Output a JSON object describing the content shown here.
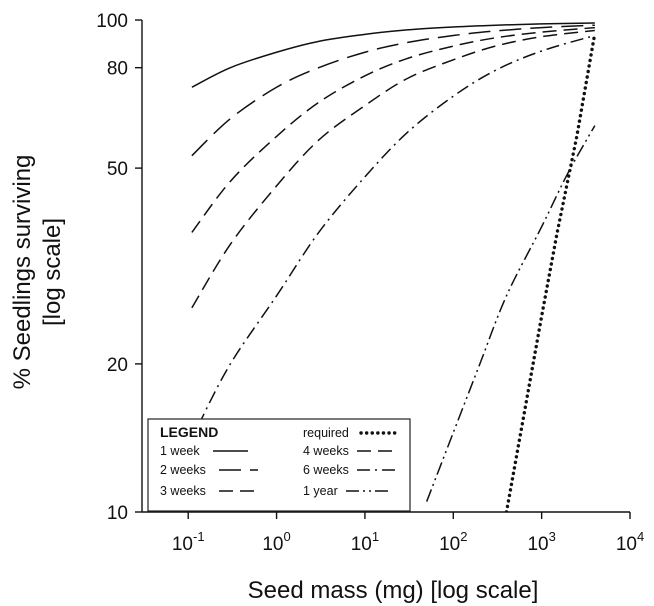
{
  "chart_data": {
    "type": "line",
    "xlabel": "Seed mass (mg) [log scale]",
    "ylabel_lines": [
      "% Seedlings surviving",
      "[log scale]"
    ],
    "x_scale": "log",
    "y_scale": "log",
    "xlim": [
      0.03,
      10000
    ],
    "ylim": [
      10,
      100
    ],
    "x_ticks": [
      {
        "value": 0.1,
        "base": "10",
        "exp": "-1"
      },
      {
        "value": 1,
        "base": "10",
        "exp": "0"
      },
      {
        "value": 10,
        "base": "10",
        "exp": "1"
      },
      {
        "value": 100,
        "base": "10",
        "exp": "2"
      },
      {
        "value": 1000,
        "base": "10",
        "exp": "3"
      },
      {
        "value": 10000,
        "base": "10",
        "exp": "4"
      }
    ],
    "y_ticks": [
      {
        "value": 10,
        "label": "10"
      },
      {
        "value": 20,
        "label": "20"
      },
      {
        "value": 50,
        "label": "50"
      },
      {
        "value": 80,
        "label": "80"
      },
      {
        "value": 100,
        "label": "100"
      }
    ],
    "legend": {
      "title": "LEGEND",
      "placement": "bottom-left"
    },
    "series": [
      {
        "name": "1 week",
        "dash": "solid",
        "x": [
          0.11,
          0.3,
          1,
          3,
          10,
          30,
          100,
          300,
          1000,
          4000
        ],
        "y": [
          73,
          80,
          86,
          90.5,
          93.5,
          95.5,
          96.8,
          97.6,
          98.2,
          98.6
        ]
      },
      {
        "name": "2 weeks",
        "dash": "long-dash",
        "x": [
          0.11,
          0.3,
          1,
          3,
          10,
          30,
          100,
          300,
          1000,
          4000
        ],
        "y": [
          53,
          63,
          73,
          80,
          86,
          90,
          93,
          95,
          96.5,
          97.6
        ]
      },
      {
        "name": "3 weeks",
        "dash": "dash",
        "x": [
          0.11,
          0.3,
          1,
          3,
          10,
          30,
          100,
          300,
          1000,
          4000
        ],
        "y": [
          37,
          47,
          58,
          68,
          77,
          83.5,
          88.5,
          92,
          94.5,
          96.5
        ]
      },
      {
        "name": "4 weeks",
        "dash": "dash",
        "x": [
          0.11,
          0.3,
          1,
          3,
          10,
          30,
          100,
          300,
          1000,
          4000
        ],
        "y": [
          26,
          35,
          46,
          57,
          67,
          76,
          83,
          88.5,
          92.5,
          95.2
        ]
      },
      {
        "name": "6 weeks",
        "dash": "dash-dot",
        "x": [
          0.13,
          0.3,
          1,
          3,
          10,
          30,
          100,
          300,
          1000,
          4000
        ],
        "y": [
          15,
          20,
          27.5,
          37,
          48,
          59,
          70,
          79,
          86.5,
          93
        ]
      },
      {
        "name": "1 year",
        "dash": "dash-dot-dot",
        "x": [
          50,
          100,
          200,
          400,
          1000,
          2000,
          4000
        ],
        "y": [
          10.5,
          14.5,
          20,
          27.5,
          38,
          49,
          61
        ]
      },
      {
        "name": "required",
        "dash": "dotted",
        "x": [
          400,
          600,
          1000,
          1500,
          2500,
          4000
        ],
        "y": [
          10,
          15,
          25,
          37,
          58,
          94
        ]
      }
    ]
  }
}
